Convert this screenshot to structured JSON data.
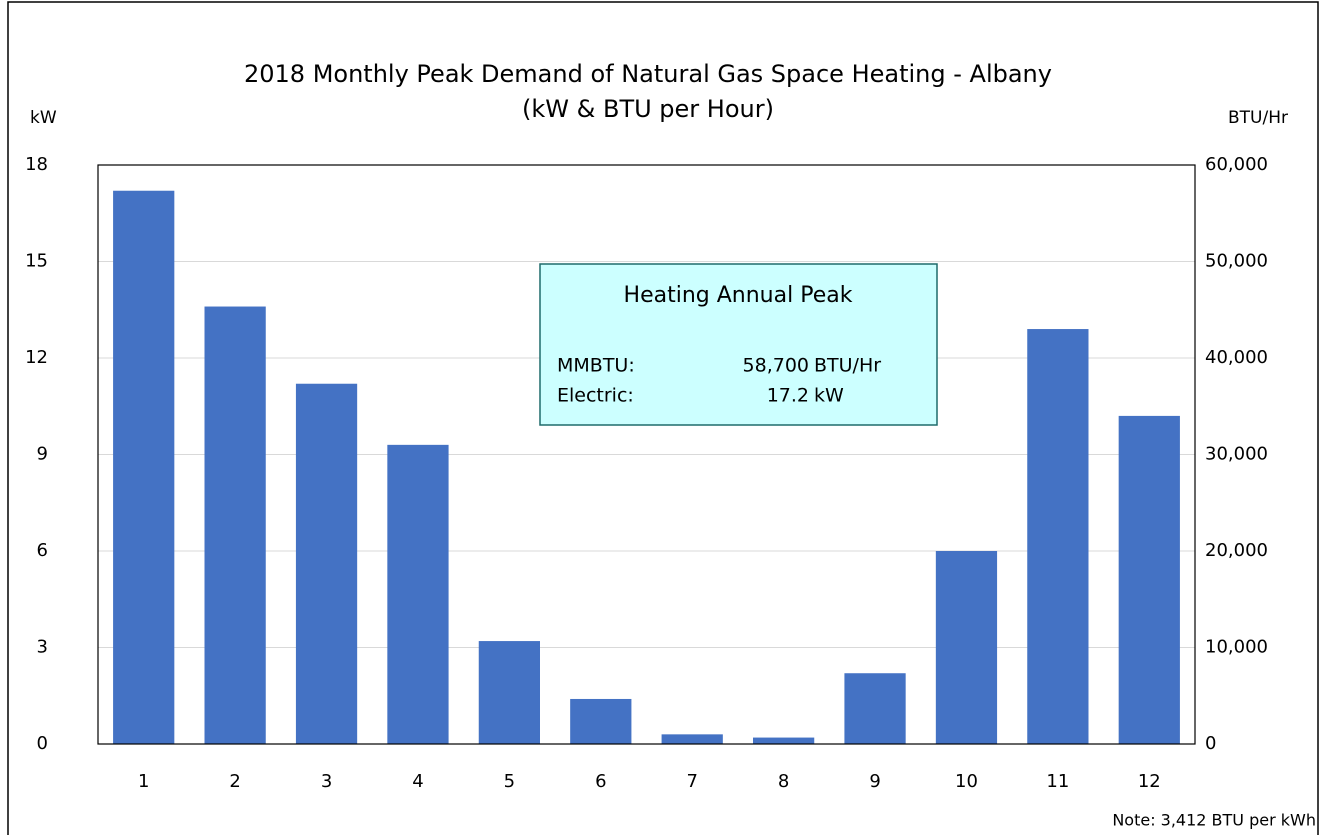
{
  "chart_data": {
    "type": "bar",
    "title": "2018 Monthly Peak Demand of Natural Gas Space Heating - Albany",
    "subtitle": "(kW & BTU per Hour)",
    "y_label": "kW",
    "y2_label": "BTU/Hr",
    "categories": [
      1,
      2,
      3,
      4,
      5,
      6,
      7,
      8,
      9,
      10,
      11,
      12
    ],
    "values": [
      17.2,
      13.6,
      11.2,
      9.3,
      3.2,
      1.4,
      0.3,
      0.2,
      2.2,
      6.0,
      12.9,
      10.2
    ],
    "color": "#4472c4",
    "ylim": [
      0,
      18
    ],
    "yticks": [
      0,
      3,
      6,
      9,
      12,
      15,
      18
    ],
    "y2lim": [
      0,
      60000
    ],
    "y2ticks": [
      0,
      {
        "value": 10000,
        "label": "10,000"
      },
      {
        "value": 20000,
        "label": "20,000"
      },
      {
        "value": 30000,
        "label": "30,000"
      },
      {
        "value": 40000,
        "label": "40,000"
      },
      {
        "value": 50000,
        "label": "50,000"
      },
      {
        "value": 60000,
        "label": "60,000"
      }
    ],
    "grid": true,
    "annotation": {
      "title": "Heating Annual Peak",
      "rows": [
        [
          "MMBTU:",
          "58,700",
          "BTU/Hr"
        ],
        [
          "Electric:",
          "17.2",
          "kW"
        ]
      ]
    },
    "note": "Note: 3,412  BTU per kWh"
  }
}
